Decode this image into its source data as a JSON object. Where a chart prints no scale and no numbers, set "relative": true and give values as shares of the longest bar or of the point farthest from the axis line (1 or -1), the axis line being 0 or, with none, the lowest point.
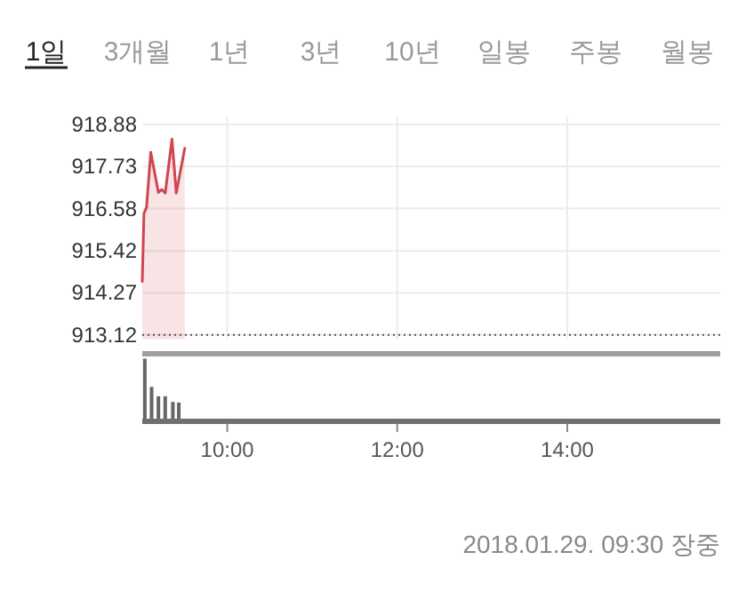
{
  "chart_data": [
    {
      "type": "area",
      "annotations": [
        "1일",
        "3개월",
        "1년",
        "3년",
        "10년",
        "일봉",
        "주봉",
        "월봉"
      ],
      "x": [
        9.0,
        9.02,
        9.05,
        9.1,
        9.19,
        9.23,
        9.27,
        9.35,
        9.4,
        9.5
      ],
      "series": [
        {
          "color": "#d0454f",
          "values": [
            914.58,
            916.45,
            916.61,
            918.12,
            917.02,
            917.1,
            917.0,
            918.48,
            917.0,
            918.23
          ]
        }
      ],
      "xlim": [
        9,
        15.8
      ],
      "ylim": [
        913.0,
        919.1
      ],
      "xticks": [
        {
          "value": 10,
          "label": null
        },
        {
          "value": 12,
          "label": null
        },
        {
          "value": 14,
          "label": null
        }
      ],
      "yticks": [
        913.12,
        914.27,
        915.42,
        916.58,
        917.73,
        918.88
      ],
      "ref_lines": [
        {
          "axis": "y",
          "value": 913.12,
          "label": null,
          "color": "#555555",
          "line_style": "dotted"
        }
      ],
      "grid": true,
      "tick_labels": "y"
    },
    {
      "type": "bar",
      "relative": true,
      "annotations": [
        "2018.01.29. 09:30 장중"
      ],
      "x": [
        9.03,
        9.11,
        9.19,
        9.27,
        9.36,
        9.43
      ],
      "series": [
        {
          "color": "#666666",
          "values": [
            1,
            0.55,
            0.4,
            0.4,
            0.31,
            0.3
          ]
        }
      ],
      "xlim": [
        9,
        15.8
      ],
      "xticks": [
        {
          "value": 10,
          "label": "10:00"
        },
        {
          "value": 12,
          "label": "12:00"
        },
        {
          "value": 14,
          "label": "14:00"
        }
      ],
      "tick_labels": "x"
    }
  ]
}
